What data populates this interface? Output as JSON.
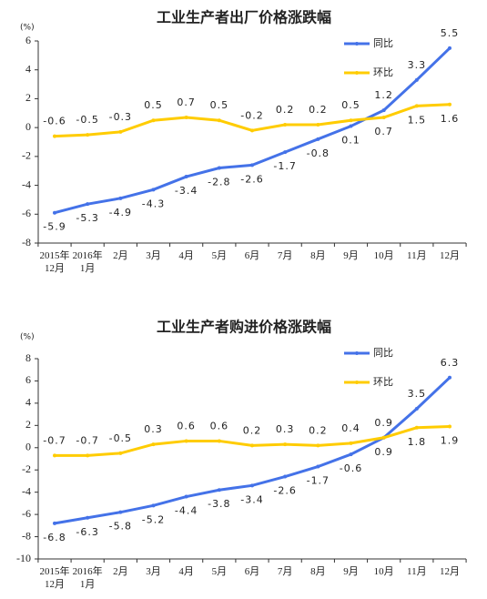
{
  "chart_data": [
    {
      "type": "line",
      "title": "工业生产者出厂价格涨跌幅",
      "y_unit": "(%)",
      "categories": [
        "2015年\n12月",
        "2016年\n1月",
        "2月",
        "3月",
        "4月",
        "5月",
        "6月",
        "7月",
        "8月",
        "9月",
        "10月",
        "11月",
        "12月"
      ],
      "series": [
        {
          "name": "同比",
          "color": "#4472e8",
          "values": [
            -5.9,
            -5.3,
            -4.9,
            -4.3,
            -3.4,
            -2.8,
            -2.6,
            -1.7,
            -0.8,
            0.1,
            1.2,
            3.3,
            5.5
          ]
        },
        {
          "name": "环比",
          "color": "#ffcc00",
          "values": [
            -0.6,
            -0.5,
            -0.3,
            0.5,
            0.7,
            0.5,
            -0.2,
            0.2,
            0.2,
            0.5,
            0.7,
            1.5,
            1.6
          ]
        }
      ],
      "ylim": [
        -8,
        6
      ],
      "yticks": [
        -8,
        -6,
        -4,
        -2,
        0,
        2,
        4,
        6
      ],
      "legend": "upper right"
    },
    {
      "type": "line",
      "title": "工业生产者购进价格涨跌幅",
      "y_unit": "(%)",
      "categories": [
        "2015年\n12月",
        "2016年\n1月",
        "2月",
        "3月",
        "4月",
        "5月",
        "6月",
        "7月",
        "8月",
        "9月",
        "10月",
        "11月",
        "12月"
      ],
      "series": [
        {
          "name": "同比",
          "color": "#4472e8",
          "values": [
            -6.8,
            -6.3,
            -5.8,
            -5.2,
            -4.4,
            -3.8,
            -3.4,
            -2.6,
            -1.7,
            -0.6,
            0.9,
            3.5,
            6.3
          ]
        },
        {
          "name": "环比",
          "color": "#ffcc00",
          "values": [
            -0.7,
            -0.7,
            -0.5,
            0.3,
            0.6,
            0.6,
            0.2,
            0.3,
            0.2,
            0.4,
            0.9,
            1.8,
            1.9
          ]
        }
      ],
      "ylim": [
        -10,
        8
      ],
      "yticks": [
        -10,
        -8,
        -6,
        -4,
        -2,
        0,
        2,
        4,
        6,
        8
      ],
      "legend": "upper right"
    }
  ]
}
